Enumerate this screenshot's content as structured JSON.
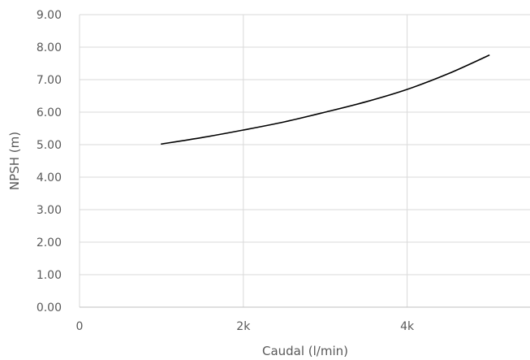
{
  "chart_data": {
    "type": "line",
    "title": "",
    "xlabel": "Caudal (l/min)",
    "ylabel": "NPSH (m)",
    "xlim": [
      0,
      5500
    ],
    "ylim": [
      0,
      9
    ],
    "x_ticks": [
      {
        "value": 0,
        "label": "0"
      },
      {
        "value": 2000,
        "label": "2k"
      },
      {
        "value": 4000,
        "label": "4k"
      }
    ],
    "y_ticks": [
      {
        "value": 0,
        "label": "0.00"
      },
      {
        "value": 1,
        "label": "1.00"
      },
      {
        "value": 2,
        "label": "2.00"
      },
      {
        "value": 3,
        "label": "3.00"
      },
      {
        "value": 4,
        "label": "4.00"
      },
      {
        "value": 5,
        "label": "5.00"
      },
      {
        "value": 6,
        "label": "6.00"
      },
      {
        "value": 7,
        "label": "7.00"
      },
      {
        "value": 8,
        "label": "8.00"
      },
      {
        "value": 9,
        "label": "9.00"
      }
    ],
    "grid": true,
    "legend": "none",
    "colors": {
      "line": "#000000",
      "grid": "#d9d9d9",
      "text": "#595959"
    },
    "series": [
      {
        "x": [
          1000,
          1500,
          2000,
          2500,
          3000,
          3500,
          4000,
          4500,
          5000
        ],
        "values": [
          5.02,
          5.22,
          5.45,
          5.7,
          6.0,
          6.32,
          6.7,
          7.18,
          7.75
        ]
      }
    ]
  }
}
